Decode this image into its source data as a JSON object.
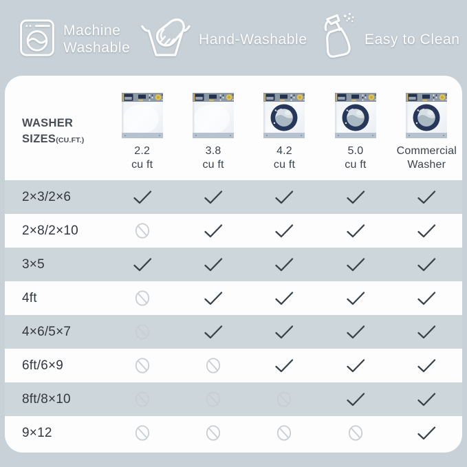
{
  "banner": {
    "features": [
      {
        "icon": "washing-machine-icon",
        "label_line1": "Machine",
        "label_line2": "Washable"
      },
      {
        "icon": "hand-wash-icon",
        "label": "Hand-Washable"
      },
      {
        "icon": "spray-bottle-icon",
        "label": "Easy to Clean"
      }
    ]
  },
  "table": {
    "corner": {
      "line1": "WASHER",
      "line2": "SIZES",
      "suffix": "(CU.FT.)"
    },
    "columns": [
      {
        "label_line1": "2.2",
        "label_line2": "cu ft",
        "washer_type": "top-load"
      },
      {
        "label_line1": "3.8",
        "label_line2": "cu ft",
        "washer_type": "top-load"
      },
      {
        "label_line1": "4.2",
        "label_line2": "cu ft",
        "washer_type": "front-load"
      },
      {
        "label_line1": "5.0",
        "label_line2": "cu ft",
        "washer_type": "front-load"
      },
      {
        "label_line1": "Commercial",
        "label_line2": "Washer",
        "washer_type": "front-load"
      }
    ],
    "rows": [
      {
        "label": "2×3/2×6",
        "cells": [
          "yes",
          "yes",
          "yes",
          "yes",
          "yes"
        ]
      },
      {
        "label": "2×8/2×10",
        "cells": [
          "no",
          "yes",
          "yes",
          "yes",
          "yes"
        ]
      },
      {
        "label": "3×5",
        "cells": [
          "yes",
          "yes",
          "yes",
          "yes",
          "yes"
        ]
      },
      {
        "label": "4ft",
        "cells": [
          "no",
          "yes",
          "yes",
          "yes",
          "yes"
        ]
      },
      {
        "label": "4×6/5×7",
        "cells": [
          "no",
          "yes",
          "yes",
          "yes",
          "yes"
        ]
      },
      {
        "label": "6ft/6×9",
        "cells": [
          "no",
          "no",
          "yes",
          "yes",
          "yes"
        ]
      },
      {
        "label": "8ft/8×10",
        "cells": [
          "no",
          "no",
          "no",
          "yes",
          "yes"
        ]
      },
      {
        "label": "9×12",
        "cells": [
          "no",
          "no",
          "no",
          "no",
          "yes"
        ]
      }
    ]
  },
  "chart_data": {
    "type": "table",
    "title": "WASHER SIZES (CU.FT.)",
    "columns": [
      "2.2 cu ft",
      "3.8 cu ft",
      "4.2 cu ft",
      "5.0 cu ft",
      "Commercial Washer"
    ],
    "row_labels": [
      "2×3/2×6",
      "2×8/2×10",
      "3×5",
      "4ft",
      "4×6/5×7",
      "6ft/6×9",
      "8ft/8×10",
      "9×12"
    ],
    "values": [
      [
        "yes",
        "yes",
        "yes",
        "yes",
        "yes"
      ],
      [
        "no",
        "yes",
        "yes",
        "yes",
        "yes"
      ],
      [
        "yes",
        "yes",
        "yes",
        "yes",
        "yes"
      ],
      [
        "no",
        "yes",
        "yes",
        "yes",
        "yes"
      ],
      [
        "no",
        "yes",
        "yes",
        "yes",
        "yes"
      ],
      [
        "no",
        "no",
        "yes",
        "yes",
        "yes"
      ],
      [
        "no",
        "no",
        "no",
        "yes",
        "yes"
      ],
      [
        "no",
        "no",
        "no",
        "no",
        "yes"
      ]
    ],
    "cell_symbols": {
      "yes": "checkmark",
      "no": "prohibited-circle"
    }
  },
  "colors": {
    "background": "#c8d1d7",
    "card": "#fdfdfd",
    "stripe": "#cdd6db",
    "check": "#3a4249",
    "prohibited": "#c9ced2",
    "text_dark": "#3a4148",
    "banner_text": "#ffffff",
    "washer_navy": "#22304d",
    "washer_gold": "#dfbc4d",
    "washer_panel": "#8d98a5",
    "washer_base": "#b6c2cf"
  }
}
